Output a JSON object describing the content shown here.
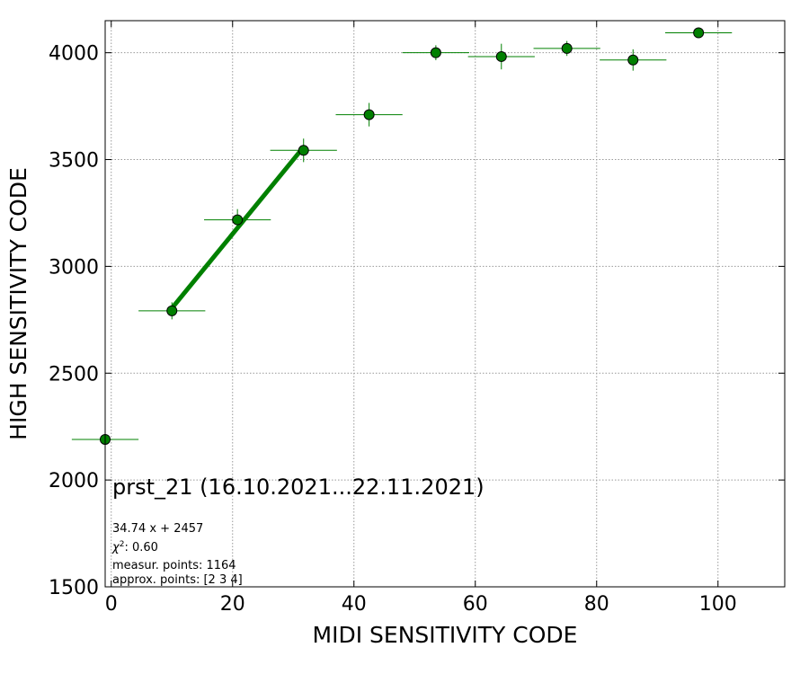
{
  "chart_data": {
    "type": "scatter",
    "title": "prst_21 (16.10.2021...22.11.2021)",
    "xlabel": "MIDI SENSITIVITY CODE",
    "ylabel": "HIGH SENSITIVITY CODE",
    "xlim": [
      -1,
      111
    ],
    "ylim": [
      1500,
      4150
    ],
    "xticks": [
      0,
      20,
      40,
      60,
      80,
      100
    ],
    "yticks": [
      1500,
      2000,
      2500,
      3000,
      3500,
      4000
    ],
    "grid": true,
    "colors": {
      "marker": "#008000",
      "fit_line": "#008000",
      "marker_edge": "#000000",
      "grid": "#999999"
    },
    "points": [
      {
        "x": -1,
        "y": 2190,
        "xerr": 5.5,
        "yerr": 0
      },
      {
        "x": 10,
        "y": 2792,
        "xerr": 5.5,
        "yerr": 40
      },
      {
        "x": 20.8,
        "y": 3218,
        "xerr": 5.5,
        "yerr": 50
      },
      {
        "x": 31.7,
        "y": 3543,
        "xerr": 5.5,
        "yerr": 55
      },
      {
        "x": 42.5,
        "y": 3710,
        "xerr": 5.5,
        "yerr": 55
      },
      {
        "x": 53.5,
        "y": 4000,
        "xerr": 5.5,
        "yerr": 35
      },
      {
        "x": 64.3,
        "y": 3982,
        "xerr": 5.5,
        "yerr": 60
      },
      {
        "x": 75.1,
        "y": 4020,
        "xerr": 5.5,
        "yerr": 35
      },
      {
        "x": 86,
        "y": 3966,
        "xerr": 5.5,
        "yerr": 50
      },
      {
        "x": 96.8,
        "y": 4093,
        "xerr": 5.5,
        "yerr": 0
      }
    ],
    "fit": {
      "slope": 34.74,
      "intercept": 2457,
      "x_range": [
        10,
        31.7
      ]
    },
    "annotations": [
      "34.74 x + 2457",
      "measur. points: 1164",
      "approx. points: [2 3 4]"
    ],
    "chi2_label": "χ",
    "chi2_exp": "2",
    "chi2_value": ": 0.60"
  }
}
